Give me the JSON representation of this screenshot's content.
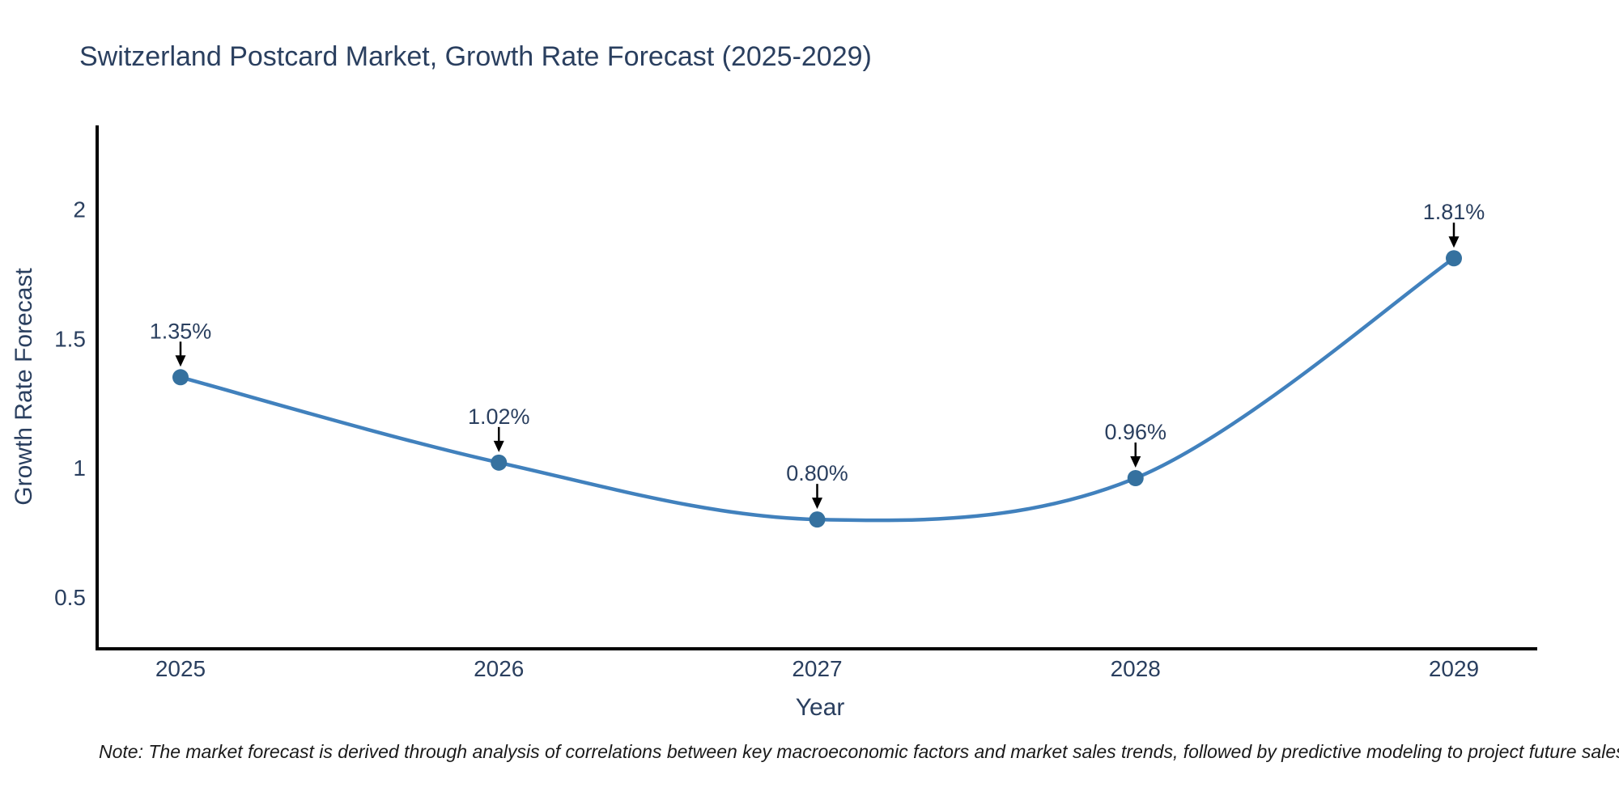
{
  "page": {
    "note": "Note: The market forecast is derived through analysis of correlations between key macroeconomic factors and market sales trends, followed by predictive modeling to project future sales"
  },
  "chart_data": {
    "type": "line",
    "title": "Switzerland Postcard Market, Growth Rate Forecast (2025-2029)",
    "xlabel": "Year",
    "ylabel": "Growth Rate Forecast",
    "x": [
      2025,
      2026,
      2027,
      2028,
      2029
    ],
    "series": [
      {
        "name": "Growth Rate Forecast",
        "values": [
          1.35,
          1.02,
          0.8,
          0.96,
          1.81
        ],
        "point_labels": [
          "1.35%",
          "1.02%",
          "0.80%",
          "0.96%",
          "1.81%"
        ]
      }
    ],
    "yticks": [
      0.5,
      1,
      1.5,
      2
    ],
    "ylim": [
      0.3,
      2.33
    ],
    "grid": false,
    "legend_position": "none",
    "line_shape": "spline",
    "colors": {
      "line": "#4181bd",
      "marker": "#35719f",
      "axis": "#000000",
      "annotation_arrow": "#000000",
      "text": "#2a3f5f"
    }
  }
}
